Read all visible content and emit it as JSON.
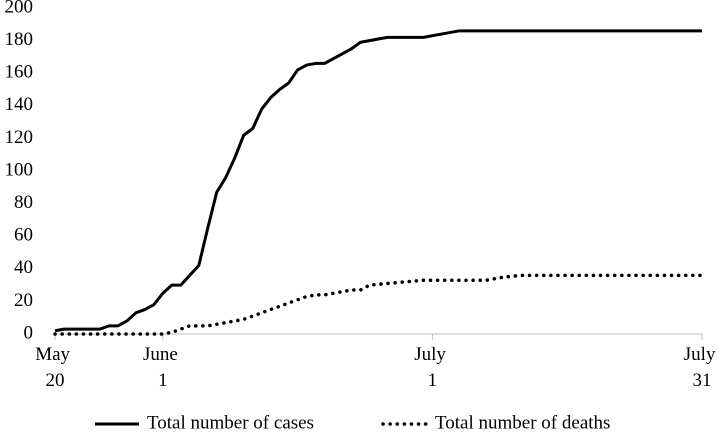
{
  "chart_data": {
    "type": "line",
    "x": [
      "May 20",
      "May 21",
      "May 25",
      "May 26",
      "May 27",
      "May 28",
      "May 29",
      "May 30",
      "May 31",
      "June 1",
      "June 2",
      "June 3",
      "June 4",
      "June 5",
      "June 6",
      "June 7",
      "June 8",
      "June 9",
      "June 10",
      "June 11",
      "June 12",
      "June 13",
      "June 14",
      "June 15",
      "June 16",
      "June 17",
      "June 18",
      "June 19",
      "June 20",
      "June 21",
      "June 22",
      "June 23",
      "June 24",
      "June 26",
      "June 28",
      "June 30",
      "July 2",
      "July 4",
      "July 7",
      "July 9",
      "July 11",
      "July 31"
    ],
    "series": [
      {
        "name": "Total number of cases",
        "color": "#000000",
        "style": "solid",
        "values": [
          2,
          3,
          3,
          5,
          5,
          8,
          13,
          15,
          18,
          25,
          30,
          30,
          36,
          42,
          65,
          87,
          96,
          108,
          122,
          126,
          138,
          145,
          150,
          154,
          162,
          165,
          166,
          166,
          169,
          172,
          175,
          179,
          180,
          182,
          182,
          182,
          184,
          186,
          186,
          186,
          186,
          186
        ]
      },
      {
        "name": "Total number of deaths",
        "color": "#000000",
        "style": "dotted",
        "values": [
          0,
          0,
          0,
          0,
          0,
          0,
          0,
          0,
          0,
          0,
          1,
          3,
          5,
          5,
          5,
          6,
          7,
          8,
          9,
          11,
          13,
          15,
          17,
          19,
          21,
          23,
          24,
          24,
          25,
          26,
          27,
          27,
          30,
          31,
          32,
          33,
          33,
          33,
          33,
          35,
          36,
          36
        ]
      }
    ],
    "xlim": [
      "May 20",
      "July 31"
    ],
    "xticks": [
      "May 20",
      "June 1",
      "July 1",
      "July 31"
    ],
    "ylim": [
      0,
      200
    ],
    "yticks": [
      0,
      20,
      40,
      60,
      80,
      100,
      120,
      140,
      160,
      180,
      200
    ],
    "legend": "bottom",
    "grid": false
  }
}
